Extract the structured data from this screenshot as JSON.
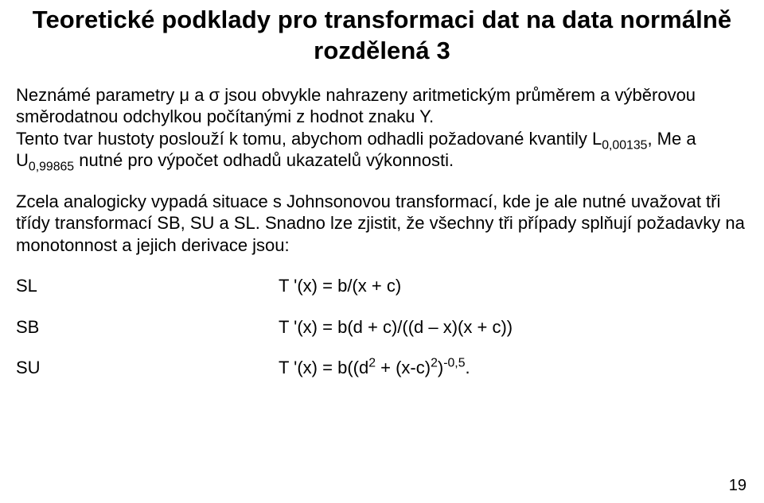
{
  "title_line1": "Teoretické podklady pro transformaci dat na data normálně",
  "title_line2": "rozdělená 3",
  "para1_pre": "Neznámé parametry μ a σ jsou obvykle nahrazeny aritmetickým průměrem a výběrovou směrodatnou odchylkou počítanými z hodnot znaku Y.",
  "para1_line2a": "Tento tvar hustoty poslouží k tomu, abychom odhadli požadované kvantily L",
  "sub1": "0,00135",
  "para1_line2b": ", Me a",
  "para1_line3a": "U",
  "sub2": "0,99865",
  "para1_line3b": " nutné pro výpočet odhadů ukazatelů výkonnosti.",
  "para2": "Zcela analogicky vypadá situace s Johnsonovou transformací, kde je ale nutné uvažovat tři třídy transformací SB, SU  a SL. Snadno lze zjistit, že všechny tři případy splňují požadavky na monotonnost a jejich derivace jsou:",
  "eq1_label": "SL",
  "eq1_expr": "T '(x) = b/(x + c)",
  "eq2_label": "SB",
  "eq2_expr": "T '(x) = b(d + c)/((d – x)(x + c))",
  "eq3_label": "SU",
  "eq3_expr_a": "T '(x) = b((d",
  "eq3_sup1": "2",
  "eq3_expr_b": " + (x-c)",
  "eq3_sup2": "2",
  "eq3_expr_c": ")",
  "eq3_sup3": "-0,5",
  "eq3_expr_d": ".",
  "page_number": "19"
}
